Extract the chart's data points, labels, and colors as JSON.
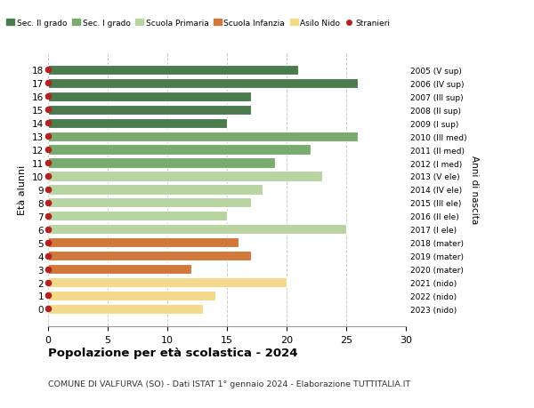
{
  "ages": [
    18,
    17,
    16,
    15,
    14,
    13,
    12,
    11,
    10,
    9,
    8,
    7,
    6,
    5,
    4,
    3,
    2,
    1,
    0
  ],
  "values": [
    21,
    26,
    17,
    17,
    15,
    26,
    22,
    19,
    23,
    18,
    17,
    15,
    25,
    16,
    17,
    12,
    20,
    14,
    13
  ],
  "right_labels": [
    "2005 (V sup)",
    "2006 (IV sup)",
    "2007 (III sup)",
    "2008 (II sup)",
    "2009 (I sup)",
    "2010 (III med)",
    "2011 (II med)",
    "2012 (I med)",
    "2013 (V ele)",
    "2014 (IV ele)",
    "2015 (III ele)",
    "2016 (II ele)",
    "2017 (I ele)",
    "2018 (mater)",
    "2019 (mater)",
    "2020 (mater)",
    "2021 (nido)",
    "2022 (nido)",
    "2023 (nido)"
  ],
  "colors": [
    "#4a7c4e",
    "#4a7c4e",
    "#4a7c4e",
    "#4a7c4e",
    "#4a7c4e",
    "#7aab6e",
    "#7aab6e",
    "#7aab6e",
    "#b8d4a0",
    "#b8d4a0",
    "#b8d4a0",
    "#b8d4a0",
    "#b8d4a0",
    "#d2783a",
    "#d2783a",
    "#d2783a",
    "#f5d98b",
    "#f5d98b",
    "#f5d98b"
  ],
  "legend_labels": [
    "Sec. II grado",
    "Sec. I grado",
    "Scuola Primaria",
    "Scuola Infanzia",
    "Asilo Nido",
    "Stranieri"
  ],
  "legend_colors": [
    "#4a7c4e",
    "#7aab6e",
    "#b8d4a0",
    "#d2783a",
    "#f5d98b",
    "#b22222"
  ],
  "title": "Popolazione per età scolastica - 2024",
  "subtitle": "COMUNE DI VALFURVA (SO) - Dati ISTAT 1° gennaio 2024 - Elaborazione TUTTITALIA.IT",
  "ylabel": "Età alunni",
  "right_ylabel": "Anni di nascita",
  "xlim": [
    0,
    30
  ],
  "xticks": [
    0,
    5,
    10,
    15,
    20,
    25,
    30
  ],
  "dot_color": "#b22222",
  "dot_size": 20,
  "bg_color": "#ffffff",
  "grid_color": "#cccccc",
  "bar_height": 0.75
}
